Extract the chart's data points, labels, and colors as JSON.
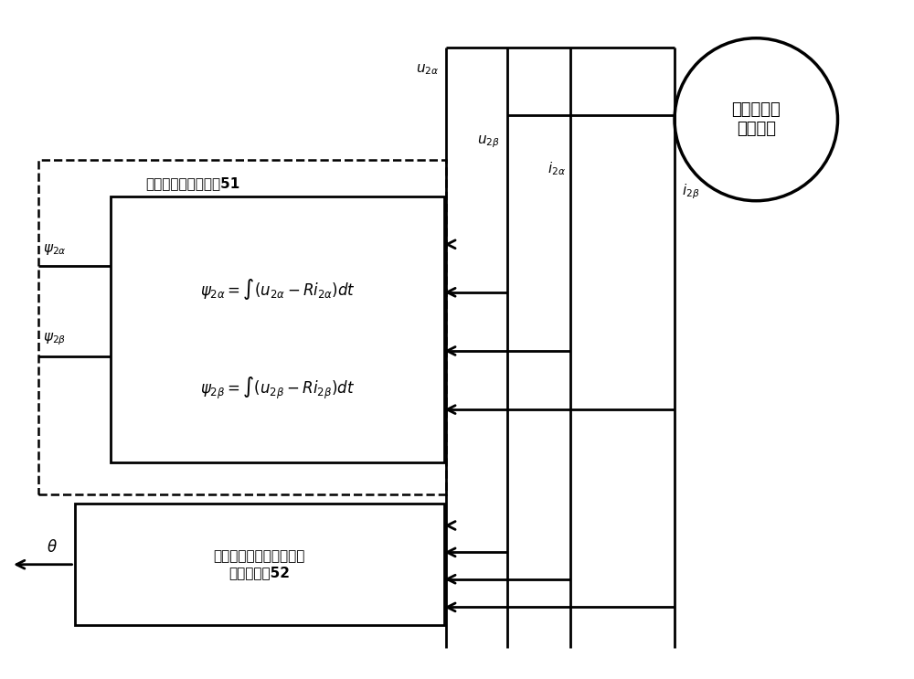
{
  "bg_color": "#ffffff",
  "line_color": "#000000",
  "fig_width": 10.0,
  "fig_height": 7.43,
  "motor_label": "无轴承永磁\n同步电机",
  "flux_label_top": "转矩绕组磁链观测器51",
  "flux_eq1": "$\\psi_{2\\alpha} = \\int(u_{2\\alpha} - Ri_{2\\alpha})dt$",
  "flux_eq2": "$\\psi_{2\\beta} = \\int(u_{2\\beta} - Ri_{2\\beta})dt$",
  "pll_label": "基于锁相环的滑模转子角\n位置观测器52",
  "u2a_label": "$u_{2\\alpha}$",
  "u2b_label": "$u_{2\\beta}$",
  "i2a_label": "$i_{2\\alpha}$",
  "i2b_label": "$i_{2\\beta}$",
  "psi2a_label": "$\\psi_{2\\alpha}$",
  "psi2b_label": "$\\psi_{2\\beta}$",
  "theta_label": "$\\theta$"
}
